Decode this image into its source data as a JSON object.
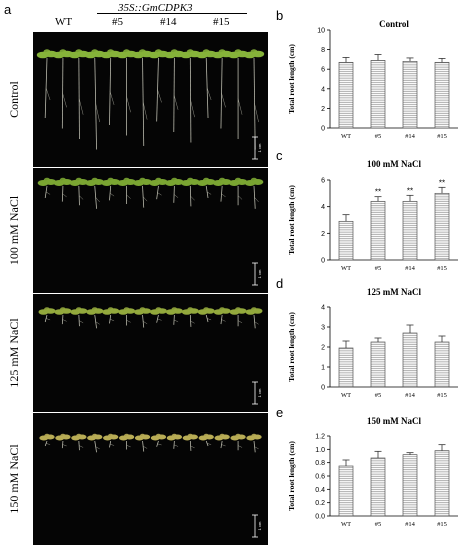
{
  "figure": {
    "panel_a": {
      "letter": "a",
      "genotype_header": "35S::GmCDPK3",
      "columns": [
        "WT",
        "#5",
        "#14",
        "#15"
      ],
      "rows": [
        "Control",
        "100 mM NaCl",
        "125 mM NaCl",
        "150 mM NaCl"
      ],
      "scale_bar_label": "1 cm"
    }
  },
  "chart_data": [
    {
      "type": "bar",
      "letter": "b",
      "title": "Control",
      "ylabel": "Total root length (cm)",
      "categories": [
        "WT",
        "#5",
        "#14",
        "#15"
      ],
      "values": [
        6.7,
        6.9,
        6.8,
        6.7
      ],
      "errors": [
        0.5,
        0.6,
        0.35,
        0.4
      ],
      "annotations": [
        "",
        "",
        "",
        ""
      ],
      "ylim": [
        0,
        10
      ],
      "yticks": [
        "0",
        "2",
        "4",
        "6",
        "8",
        "10"
      ]
    },
    {
      "type": "bar",
      "letter": "c",
      "title": "100 mM NaCl",
      "ylabel": "Total root length (cm)",
      "categories": [
        "WT",
        "#5",
        "#14",
        "#15"
      ],
      "values": [
        2.9,
        4.4,
        4.4,
        5.0
      ],
      "errors": [
        0.5,
        0.35,
        0.45,
        0.45
      ],
      "annotations": [
        "",
        "**",
        "**",
        "**"
      ],
      "ylim": [
        0,
        6
      ],
      "yticks": [
        "0",
        "2",
        "4",
        "6"
      ]
    },
    {
      "type": "bar",
      "letter": "d",
      "title": "125 mM NaCl",
      "ylabel": "Total root length (cm)",
      "categories": [
        "WT",
        "#5",
        "#14",
        "#15"
      ],
      "values": [
        1.95,
        2.25,
        2.7,
        2.25
      ],
      "errors": [
        0.35,
        0.2,
        0.4,
        0.3
      ],
      "annotations": [
        "",
        "",
        "",
        ""
      ],
      "ylim": [
        0,
        4
      ],
      "yticks": [
        "0",
        "1",
        "2",
        "3",
        "4"
      ]
    },
    {
      "type": "bar",
      "letter": "e",
      "title": "150 mM NaCl",
      "ylabel": "Total root length (cm)",
      "categories": [
        "WT",
        "#5",
        "#14",
        "#15"
      ],
      "values": [
        0.75,
        0.87,
        0.92,
        0.98
      ],
      "errors": [
        0.09,
        0.1,
        0.03,
        0.09
      ],
      "annotations": [
        "",
        "",
        "",
        ""
      ],
      "ylim": [
        0,
        1.2
      ],
      "yticks": [
        "0.0",
        "0.2",
        "0.4",
        "0.6",
        "0.8",
        "1.0",
        "1.2"
      ]
    }
  ]
}
